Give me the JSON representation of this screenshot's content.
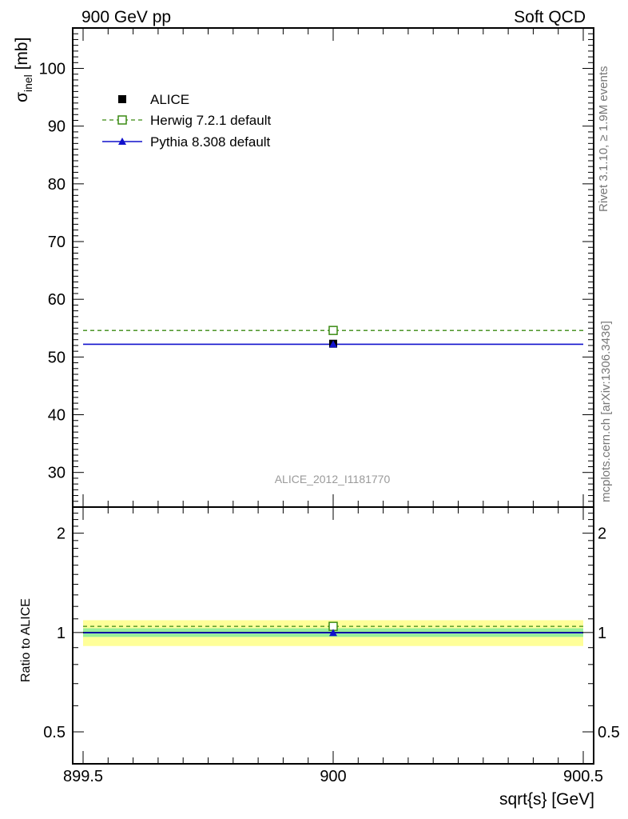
{
  "header": {
    "left": "900 GeV pp",
    "right": "Soft QCD"
  },
  "side_text": {
    "top": "Rivet 3.1.10, ≥ 1.9M events",
    "bottom": "mcplots.cern.ch [arXiv:1306.3436]"
  },
  "watermark": "ALICE_2012_I1181770",
  "colors": {
    "alice": "#000000",
    "herwig": "#3a8a12",
    "pythia": "#1111cc",
    "band_inner": "#99ee99",
    "band_outer": "#ffff99"
  },
  "chart_data": [
    {
      "type": "scatter",
      "title": "",
      "xlabel": "sqrt{s} [GeV]",
      "ylabel": "σ_inel [mb]",
      "ylabel_main": "σ",
      "ylabel_sub": "inel",
      "ylabel_unit": " [mb]",
      "xlim": [
        899.5,
        900.5
      ],
      "ylim": [
        24,
        107
      ],
      "yticks": [
        30,
        40,
        50,
        60,
        70,
        80,
        90,
        100
      ],
      "legend_position": "top-left",
      "series": [
        {
          "name": "ALICE",
          "x": [
            900
          ],
          "y": [
            52.3
          ],
          "style": "square-filled"
        },
        {
          "name": "Herwig 7.2.1 default",
          "x": [
            900
          ],
          "y": [
            54.6
          ],
          "style": "square-open-dashed"
        },
        {
          "name": "Pythia 8.308 default",
          "x": [
            900
          ],
          "y": [
            52.2
          ],
          "style": "triangle-solid"
        }
      ]
    },
    {
      "type": "line",
      "title": "",
      "xlabel": "sqrt{s} [GeV]",
      "ylabel": "Ratio to ALICE",
      "xlim": [
        899.5,
        900.5
      ],
      "ylim": [
        0.4,
        2.4
      ],
      "yscale": "log",
      "yticks": [
        0.5,
        1,
        2
      ],
      "ytick_labels": [
        "0.5",
        "1",
        "2"
      ],
      "xticks": [
        899.5,
        900,
        900.5
      ],
      "xtick_labels": [
        "899.5",
        "900",
        "900.5"
      ],
      "bands": {
        "inner": [
          0.97,
          1.03
        ],
        "outer": [
          0.91,
          1.09
        ]
      },
      "series": [
        {
          "name": "Herwig 7.2.1 default",
          "x": [
            900
          ],
          "y": [
            1.044
          ]
        },
        {
          "name": "Pythia 8.308 default",
          "x": [
            900
          ],
          "y": [
            0.998
          ]
        }
      ]
    }
  ]
}
